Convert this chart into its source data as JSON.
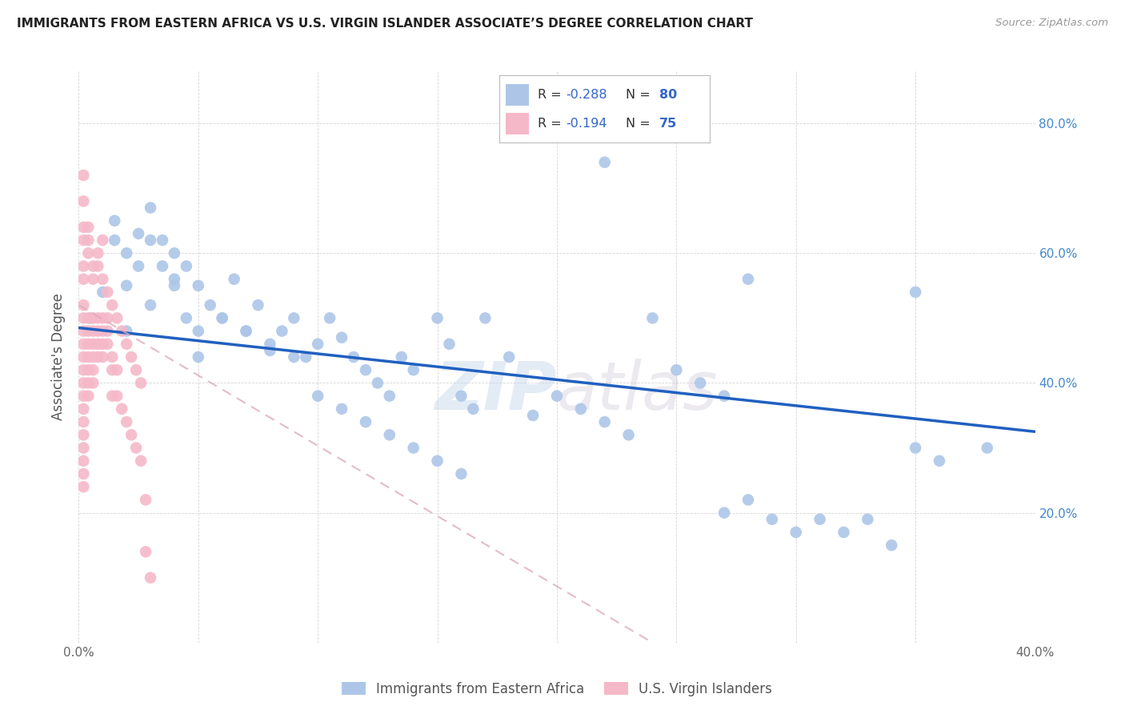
{
  "title": "IMMIGRANTS FROM EASTERN AFRICA VS U.S. VIRGIN ISLANDER ASSOCIATE’S DEGREE CORRELATION CHART",
  "source": "Source: ZipAtlas.com",
  "ylabel": "Associate's Degree",
  "xlim": [
    0.0,
    0.4
  ],
  "ylim": [
    0.0,
    0.88
  ],
  "xticks": [
    0.0,
    0.05,
    0.1,
    0.15,
    0.2,
    0.25,
    0.3,
    0.35,
    0.4
  ],
  "xticklabels": [
    "0.0%",
    "",
    "",
    "",
    "",
    "",
    "",
    "",
    "40.0%"
  ],
  "yticks_left": [
    0.0,
    0.2,
    0.4,
    0.6,
    0.8
  ],
  "yticks_right": [
    0.2,
    0.4,
    0.6,
    0.8
  ],
  "yticklabels_right": [
    "20.0%",
    "40.0%",
    "60.0%",
    "80.0%"
  ],
  "R_blue": -0.288,
  "N_blue": 80,
  "R_pink": -0.194,
  "N_pink": 75,
  "blue_color": "#adc6e8",
  "pink_color": "#f5b8c8",
  "blue_line_color": "#2060c0",
  "pink_line_color": "#d04060",
  "text_color_blue": "#3366cc",
  "watermark": "ZIPatlas",
  "legend_label_blue": "Immigrants from Eastern Africa",
  "legend_label_pink": "U.S. Virgin Islanders",
  "blue_scatter_x": [
    0.005,
    0.01,
    0.015,
    0.015,
    0.02,
    0.02,
    0.025,
    0.025,
    0.03,
    0.03,
    0.035,
    0.035,
    0.04,
    0.04,
    0.045,
    0.045,
    0.05,
    0.05,
    0.055,
    0.06,
    0.065,
    0.07,
    0.075,
    0.08,
    0.085,
    0.09,
    0.095,
    0.1,
    0.105,
    0.11,
    0.115,
    0.12,
    0.125,
    0.13,
    0.135,
    0.14,
    0.15,
    0.155,
    0.16,
    0.165,
    0.17,
    0.18,
    0.19,
    0.2,
    0.21,
    0.22,
    0.23,
    0.24,
    0.25,
    0.26,
    0.27,
    0.28,
    0.29,
    0.3,
    0.31,
    0.32,
    0.33,
    0.34,
    0.35,
    0.36,
    0.02,
    0.03,
    0.04,
    0.05,
    0.06,
    0.07,
    0.08,
    0.09,
    0.1,
    0.11,
    0.12,
    0.13,
    0.14,
    0.15,
    0.16,
    0.28,
    0.35,
    0.38,
    0.22,
    0.27
  ],
  "blue_scatter_y": [
    0.5,
    0.54,
    0.62,
    0.65,
    0.6,
    0.55,
    0.63,
    0.58,
    0.67,
    0.62,
    0.62,
    0.58,
    0.6,
    0.55,
    0.58,
    0.5,
    0.55,
    0.48,
    0.52,
    0.5,
    0.56,
    0.48,
    0.52,
    0.45,
    0.48,
    0.5,
    0.44,
    0.46,
    0.5,
    0.47,
    0.44,
    0.42,
    0.4,
    0.38,
    0.44,
    0.42,
    0.5,
    0.46,
    0.38,
    0.36,
    0.5,
    0.44,
    0.35,
    0.38,
    0.36,
    0.34,
    0.32,
    0.5,
    0.42,
    0.4,
    0.38,
    0.22,
    0.19,
    0.17,
    0.19,
    0.17,
    0.19,
    0.15,
    0.3,
    0.28,
    0.48,
    0.52,
    0.56,
    0.44,
    0.5,
    0.48,
    0.46,
    0.44,
    0.38,
    0.36,
    0.34,
    0.32,
    0.3,
    0.28,
    0.26,
    0.56,
    0.54,
    0.3,
    0.74,
    0.2
  ],
  "pink_scatter_x": [
    0.002,
    0.002,
    0.002,
    0.002,
    0.002,
    0.002,
    0.002,
    0.002,
    0.002,
    0.002,
    0.002,
    0.002,
    0.002,
    0.002,
    0.002,
    0.004,
    0.004,
    0.004,
    0.004,
    0.004,
    0.004,
    0.004,
    0.006,
    0.006,
    0.006,
    0.006,
    0.006,
    0.006,
    0.008,
    0.008,
    0.008,
    0.008,
    0.01,
    0.01,
    0.01,
    0.01,
    0.012,
    0.012,
    0.012,
    0.014,
    0.014,
    0.014,
    0.016,
    0.016,
    0.018,
    0.02,
    0.022,
    0.024,
    0.026,
    0.028,
    0.002,
    0.002,
    0.002,
    0.002,
    0.002,
    0.004,
    0.004,
    0.004,
    0.006,
    0.006,
    0.008,
    0.008,
    0.01,
    0.01,
    0.012,
    0.014,
    0.016,
    0.018,
    0.02,
    0.022,
    0.024,
    0.026,
    0.002,
    0.028,
    0.03
  ],
  "pink_scatter_y": [
    0.5,
    0.52,
    0.48,
    0.46,
    0.44,
    0.42,
    0.4,
    0.38,
    0.36,
    0.34,
    0.32,
    0.3,
    0.28,
    0.26,
    0.24,
    0.5,
    0.48,
    0.46,
    0.44,
    0.42,
    0.4,
    0.38,
    0.5,
    0.48,
    0.46,
    0.44,
    0.42,
    0.4,
    0.5,
    0.48,
    0.46,
    0.44,
    0.5,
    0.48,
    0.46,
    0.44,
    0.5,
    0.48,
    0.46,
    0.44,
    0.42,
    0.38,
    0.42,
    0.38,
    0.36,
    0.34,
    0.32,
    0.3,
    0.28,
    0.22,
    0.68,
    0.64,
    0.62,
    0.58,
    0.56,
    0.62,
    0.64,
    0.6,
    0.58,
    0.56,
    0.6,
    0.58,
    0.62,
    0.56,
    0.54,
    0.52,
    0.5,
    0.48,
    0.46,
    0.44,
    0.42,
    0.4,
    0.72,
    0.14,
    0.1
  ],
  "blue_line_x0": 0.0,
  "blue_line_y0": 0.485,
  "blue_line_x1": 0.4,
  "blue_line_y1": 0.325,
  "pink_line_x0": 0.0,
  "pink_line_y0": 0.52,
  "pink_line_x1": 0.24,
  "pink_line_y1": 0.0
}
